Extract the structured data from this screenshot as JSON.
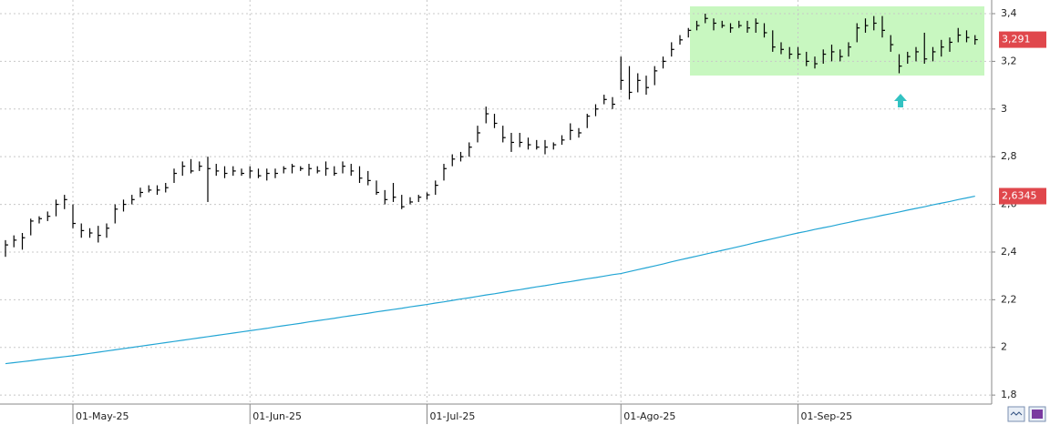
{
  "chart_data": {
    "type": "ohlc",
    "ylim": [
      1.7623,
      3.4573
    ],
    "yticks": [
      {
        "value": 1.8,
        "label": "1,8"
      },
      2,
      {
        "value": 2.2,
        "label": "2,2"
      },
      {
        "value": 2.4,
        "label": "2,4"
      },
      {
        "value": 2.6,
        "label": "2,6"
      },
      {
        "value": 2.8,
        "label": "2,8"
      },
      3,
      {
        "value": 3.2,
        "label": "3,2"
      },
      {
        "value": 3.4,
        "label": "3,4"
      }
    ],
    "grid": true,
    "categories": [
      null,
      null,
      null,
      null,
      null,
      null,
      null,
      null,
      "01-May-25",
      null,
      null,
      null,
      null,
      null,
      null,
      null,
      null,
      null,
      null,
      null,
      null,
      null,
      null,
      null,
      null,
      null,
      null,
      null,
      null,
      "01-Jun-25",
      null,
      null,
      null,
      null,
      null,
      null,
      null,
      null,
      null,
      null,
      null,
      null,
      null,
      null,
      null,
      null,
      null,
      null,
      null,
      null,
      "01-Jul-25",
      null,
      null,
      null,
      null,
      null,
      null,
      null,
      null,
      null,
      null,
      null,
      null,
      null,
      null,
      null,
      null,
      null,
      null,
      null,
      null,
      null,
      null,
      "01-Ago-25",
      null,
      null,
      null,
      null,
      null,
      null,
      null,
      null,
      null,
      null,
      null,
      null,
      null,
      null,
      null,
      null,
      null,
      null,
      null,
      null,
      "01-Sep-25",
      null,
      null,
      null,
      null,
      null,
      null,
      null,
      null,
      null,
      null,
      null,
      null,
      null,
      null,
      null,
      null,
      null,
      null,
      null,
      null,
      null
    ],
    "ohlc": {
      "color": "#000000",
      "label_color": "#e0474c",
      "last_label": "3,291",
      "high": [
        2.45,
        2.47,
        2.48,
        2.54,
        2.55,
        2.57,
        2.62,
        2.64,
        2.6,
        2.52,
        2.5,
        2.51,
        2.52,
        2.6,
        2.62,
        2.64,
        2.67,
        2.68,
        2.68,
        2.69,
        2.75,
        2.78,
        2.79,
        2.78,
        2.8,
        2.77,
        2.76,
        2.76,
        2.75,
        2.76,
        2.75,
        2.75,
        2.75,
        2.76,
        2.77,
        2.76,
        2.77,
        2.76,
        2.78,
        2.76,
        2.78,
        2.77,
        2.76,
        2.74,
        2.7,
        2.66,
        2.69,
        2.64,
        2.63,
        2.64,
        2.65,
        2.7,
        2.77,
        2.81,
        2.82,
        2.86,
        2.93,
        3.01,
        2.98,
        2.93,
        2.9,
        2.9,
        2.88,
        2.87,
        2.87,
        2.86,
        2.89,
        2.94,
        2.92,
        2.98,
        3.02,
        3.06,
        3.05,
        3.22,
        3.18,
        3.15,
        3.14,
        3.18,
        3.22,
        3.28,
        3.31,
        3.34,
        3.37,
        3.4,
        3.38,
        3.37,
        3.36,
        3.37,
        3.37,
        3.38,
        3.36,
        3.33,
        3.28,
        3.26,
        3.26,
        3.24,
        3.22,
        3.25,
        3.27,
        3.25,
        3.28,
        3.36,
        3.38,
        3.39,
        3.39,
        3.31,
        3.23,
        3.24,
        3.26,
        3.32,
        3.26,
        3.29,
        3.3,
        3.34,
        3.33,
        3.31
      ],
      "low": [
        2.38,
        2.42,
        2.41,
        2.47,
        2.52,
        2.53,
        2.55,
        2.58,
        2.5,
        2.46,
        2.46,
        2.44,
        2.46,
        2.52,
        2.57,
        2.6,
        2.63,
        2.65,
        2.64,
        2.65,
        2.69,
        2.72,
        2.73,
        2.74,
        2.61,
        2.72,
        2.71,
        2.72,
        2.72,
        2.71,
        2.71,
        2.7,
        2.71,
        2.73,
        2.73,
        2.74,
        2.72,
        2.73,
        2.72,
        2.72,
        2.73,
        2.72,
        2.69,
        2.68,
        2.64,
        2.6,
        2.61,
        2.58,
        2.6,
        2.61,
        2.62,
        2.64,
        2.7,
        2.76,
        2.78,
        2.8,
        2.86,
        2.94,
        2.92,
        2.86,
        2.82,
        2.84,
        2.83,
        2.83,
        2.81,
        2.83,
        2.85,
        2.87,
        2.88,
        2.92,
        2.97,
        3.02,
        3.0,
        3.08,
        3.04,
        3.07,
        3.06,
        3.1,
        3.17,
        3.22,
        3.27,
        3.3,
        3.33,
        3.36,
        3.33,
        3.34,
        3.32,
        3.34,
        3.32,
        3.32,
        3.3,
        3.24,
        3.23,
        3.21,
        3.21,
        3.18,
        3.17,
        3.19,
        3.2,
        3.2,
        3.22,
        3.28,
        3.32,
        3.33,
        3.3,
        3.24,
        3.15,
        3.19,
        3.2,
        3.19,
        3.2,
        3.22,
        3.24,
        3.28,
        3.28,
        3.27
      ],
      "close": [
        2.43,
        2.45,
        2.46,
        2.53,
        2.54,
        2.55,
        2.6,
        2.62,
        2.52,
        2.49,
        2.48,
        2.47,
        2.5,
        2.58,
        2.6,
        2.62,
        2.65,
        2.66,
        2.66,
        2.67,
        2.73,
        2.76,
        2.74,
        2.76,
        2.75,
        2.74,
        2.73,
        2.74,
        2.73,
        2.74,
        2.72,
        2.73,
        2.73,
        2.75,
        2.76,
        2.75,
        2.75,
        2.74,
        2.75,
        2.73,
        2.76,
        2.74,
        2.71,
        2.7,
        2.65,
        2.62,
        2.63,
        2.59,
        2.61,
        2.63,
        2.64,
        2.68,
        2.75,
        2.79,
        2.8,
        2.84,
        2.9,
        2.98,
        2.94,
        2.88,
        2.86,
        2.86,
        2.85,
        2.84,
        2.84,
        2.85,
        2.87,
        2.91,
        2.9,
        2.97,
        3.0,
        3.04,
        3.02,
        3.12,
        3.07,
        3.12,
        3.09,
        3.16,
        3.2,
        3.25,
        3.29,
        3.33,
        3.35,
        3.38,
        3.36,
        3.35,
        3.34,
        3.35,
        3.34,
        3.36,
        3.32,
        3.26,
        3.25,
        3.23,
        3.23,
        3.2,
        3.19,
        3.23,
        3.24,
        3.22,
        3.26,
        3.34,
        3.35,
        3.36,
        3.33,
        3.27,
        3.18,
        3.22,
        3.24,
        3.21,
        3.24,
        3.26,
        3.28,
        3.31,
        3.3,
        3.291
      ]
    },
    "moving_average": {
      "color": "#22a5d4",
      "last_label": "2,6345",
      "values": [
        1.932,
        1.936,
        1.94,
        1.944,
        1.949,
        1.953,
        1.957,
        1.961,
        1.965,
        1.97,
        1.975,
        1.98,
        1.985,
        1.99,
        1.995,
        2.0,
        2.005,
        2.01,
        2.015,
        2.02,
        2.025,
        2.03,
        2.035,
        2.04,
        2.045,
        2.05,
        2.055,
        2.06,
        2.065,
        2.07,
        2.075,
        2.08,
        2.086,
        2.091,
        2.096,
        2.101,
        2.107,
        2.112,
        2.117,
        2.122,
        2.128,
        2.133,
        2.138,
        2.143,
        2.149,
        2.154,
        2.159,
        2.164,
        2.17,
        2.175,
        2.18,
        2.186,
        2.191,
        2.197,
        2.203,
        2.208,
        2.214,
        2.22,
        2.225,
        2.231,
        2.237,
        2.242,
        2.248,
        2.254,
        2.259,
        2.265,
        2.271,
        2.276,
        2.282,
        2.288,
        2.293,
        2.299,
        2.305,
        2.31,
        2.318,
        2.326,
        2.334,
        2.342,
        2.35,
        2.359,
        2.367,
        2.375,
        2.383,
        2.391,
        2.399,
        2.407,
        2.415,
        2.423,
        2.431,
        2.44,
        2.448,
        2.456,
        2.464,
        2.472,
        2.48,
        2.487,
        2.495,
        2.502,
        2.509,
        2.517,
        2.524,
        2.532,
        2.539,
        2.546,
        2.554,
        2.561,
        2.568,
        2.576,
        2.583,
        2.59,
        2.598,
        2.605,
        2.612,
        2.62,
        2.627,
        2.6345
      ]
    }
  }
}
